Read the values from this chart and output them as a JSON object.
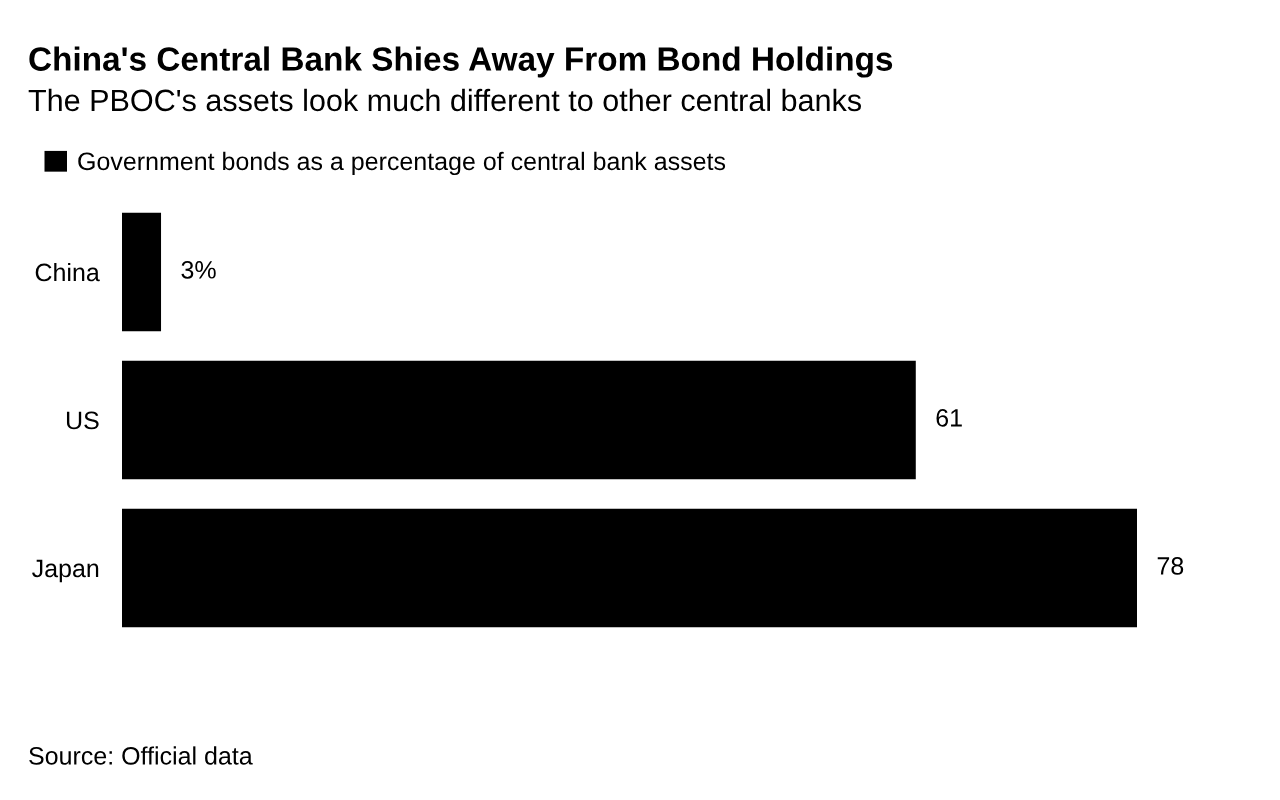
{
  "chart_data": {
    "type": "bar",
    "orientation": "horizontal",
    "title": "China's Central Bank Shies Away From Bond Holdings",
    "subtitle": "The PBOC's assets look much different to other central banks",
    "categories": [
      "China",
      "US",
      "Japan"
    ],
    "series": [
      {
        "name": "Government bonds as a percentage of central bank assets",
        "color": "#000000",
        "values": [
          3,
          61,
          78
        ],
        "value_labels": [
          "3%",
          "61",
          "78"
        ]
      }
    ],
    "legend": "top left",
    "grid": false,
    "annotations": [
      "Source: Official data"
    ]
  }
}
